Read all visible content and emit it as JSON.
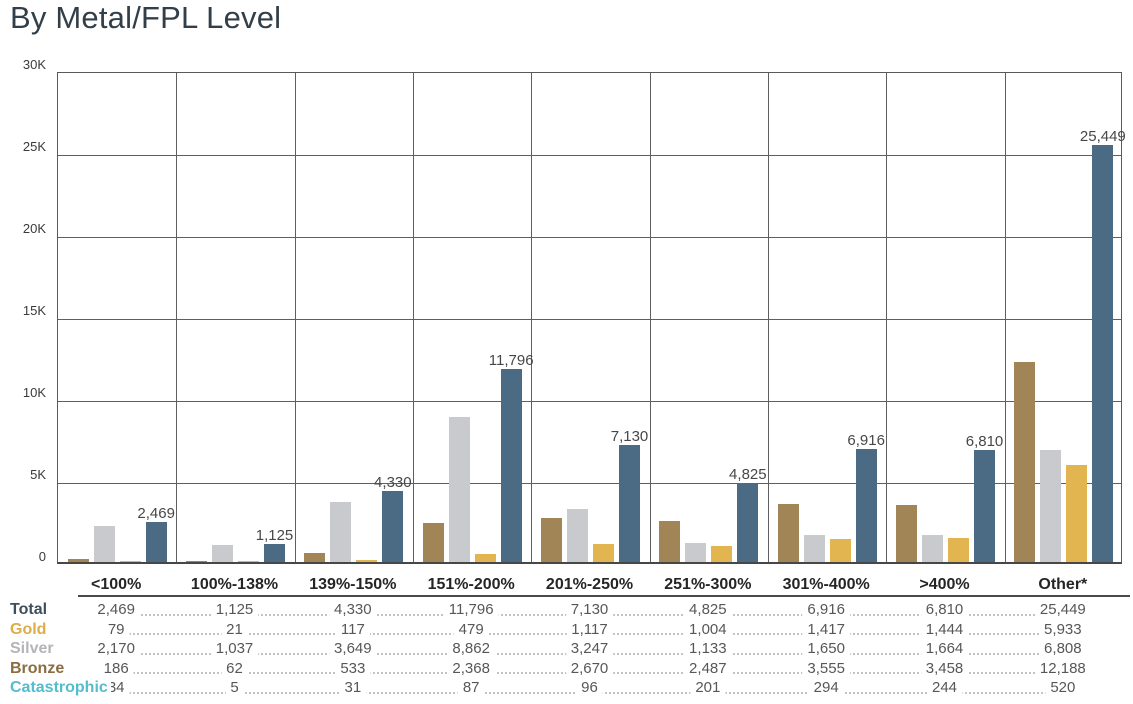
{
  "title": "By Metal/FPL Level",
  "colors": {
    "title_text": "#333f48",
    "grid": "#5f5f5f",
    "axis_text": "#3a3a3a",
    "bar_label_text": "#474747",
    "bronze": "#a18557",
    "silver": "#c9cacd",
    "gold": "#e2b550",
    "total": "#4b6a83",
    "catastrophic": "#55bccd",
    "table_value_text": "#575757"
  },
  "chart_data": {
    "type": "bar",
    "title": "By Metal/FPL Level",
    "xlabel": "",
    "ylabel": "",
    "ylim": [
      0,
      30000
    ],
    "grid": true,
    "y_ticks": [
      {
        "value": 0,
        "label": "0"
      },
      {
        "value": 5000,
        "label": "5K"
      },
      {
        "value": 10000,
        "label": "10K"
      },
      {
        "value": 15000,
        "label": "15K"
      },
      {
        "value": 20000,
        "label": "20K"
      },
      {
        "value": 25000,
        "label": "25K"
      },
      {
        "value": 30000,
        "label": "30K"
      }
    ],
    "categories": [
      "<100%",
      "100%-138%",
      "139%-150%",
      "151%-200%",
      "201%-250%",
      "251%-300%",
      "301%-400%",
      ">400%",
      "Other*"
    ],
    "series": [
      {
        "name": "Bronze",
        "color": "#a18557",
        "values": [
          186,
          62,
          533,
          2368,
          2670,
          2487,
          3555,
          3458,
          12188
        ]
      },
      {
        "name": "Silver",
        "color": "#c9cacd",
        "values": [
          2170,
          1037,
          3649,
          8862,
          3247,
          1133,
          1650,
          1664,
          6808
        ]
      },
      {
        "name": "Gold",
        "color": "#e2b550",
        "values": [
          79,
          21,
          117,
          479,
          1117,
          1004,
          1417,
          1444,
          5933
        ]
      },
      {
        "name": "Total",
        "color": "#4b6a83",
        "values": [
          2469,
          1125,
          4330,
          11796,
          7130,
          4825,
          6916,
          6810,
          25449
        ],
        "data_labels": [
          "2,469",
          "1,125",
          "4,330",
          "11,796",
          "7,130",
          "4,825",
          "6,916",
          "6,810",
          "25,449"
        ]
      }
    ],
    "series_not_drawn_as_bars": [
      {
        "name": "Catastrophic",
        "values": [
          34,
          5,
          31,
          87,
          96,
          201,
          294,
          244,
          520
        ]
      }
    ],
    "legend_position": "table-below"
  },
  "table": {
    "rows": [
      {
        "label": "Total",
        "label_color": "#3d4f5d",
        "values": [
          "2,469",
          "1,125",
          "4,330",
          "11,796",
          "7,130",
          "4,825",
          "6,916",
          "6,810",
          "25,449"
        ]
      },
      {
        "label": "Gold",
        "label_color": "#ddad4a",
        "values": [
          "79",
          "21",
          "117",
          "479",
          "1,117",
          "1,004",
          "1,417",
          "1,444",
          "5,933"
        ]
      },
      {
        "label": "Silver",
        "label_color": "#b4b4b8",
        "values": [
          "2,170",
          "1,037",
          "3,649",
          "8,862",
          "3,247",
          "1,133",
          "1,650",
          "1,664",
          "6,808"
        ]
      },
      {
        "label": "Bronze",
        "label_color": "#8c6d41",
        "values": [
          "186",
          "62",
          "533",
          "2,368",
          "2,670",
          "2,487",
          "3,555",
          "3,458",
          "12,188"
        ]
      },
      {
        "label": "Catastrophic",
        "label_color": "#55bccd",
        "values": [
          "34",
          "5",
          "31",
          "87",
          "96",
          "201",
          "294",
          "244",
          "520"
        ]
      }
    ]
  }
}
